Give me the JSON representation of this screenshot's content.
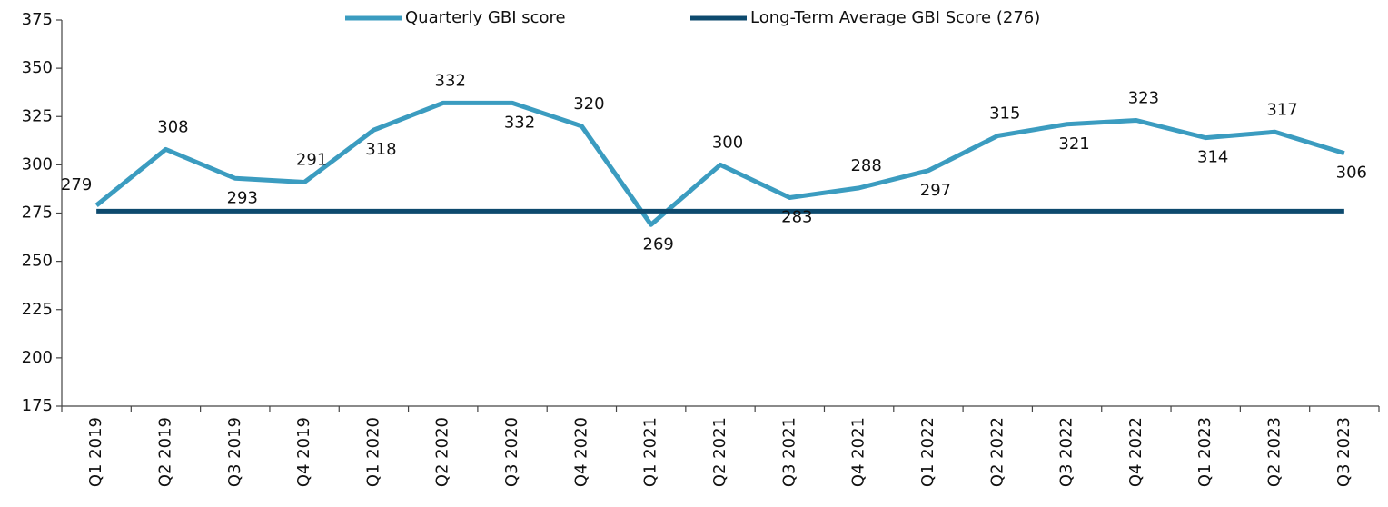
{
  "chart_data": {
    "type": "line",
    "categories": [
      "Q1 2019",
      "Q2 2019",
      "Q3 2019",
      "Q4 2019",
      "Q1 2020",
      "Q2 2020",
      "Q3 2020",
      "Q4 2020",
      "Q1 2021",
      "Q2 2021",
      "Q3 2021",
      "Q4 2021",
      "Q1 2022",
      "Q2 2022",
      "Q3 2022",
      "Q4 2022",
      "Q1 2023",
      "Q2 2023",
      "Q3 2023"
    ],
    "series": [
      {
        "name": "Quarterly GBI score",
        "color": "#3b9cc0",
        "values": [
          279,
          308,
          293,
          291,
          318,
          332,
          332,
          320,
          269,
          300,
          283,
          288,
          297,
          315,
          321,
          323,
          314,
          317,
          306
        ]
      },
      {
        "name": "Long-Term Average GBI Score (276)",
        "color": "#0d4a6e",
        "values": [
          276,
          276,
          276,
          276,
          276,
          276,
          276,
          276,
          276,
          276,
          276,
          276,
          276,
          276,
          276,
          276,
          276,
          276,
          276
        ]
      }
    ],
    "ylim": [
      175,
      375
    ],
    "yticks": [
      175,
      200,
      225,
      250,
      275,
      300,
      325,
      350,
      375
    ],
    "grid": false,
    "legend": "top"
  }
}
